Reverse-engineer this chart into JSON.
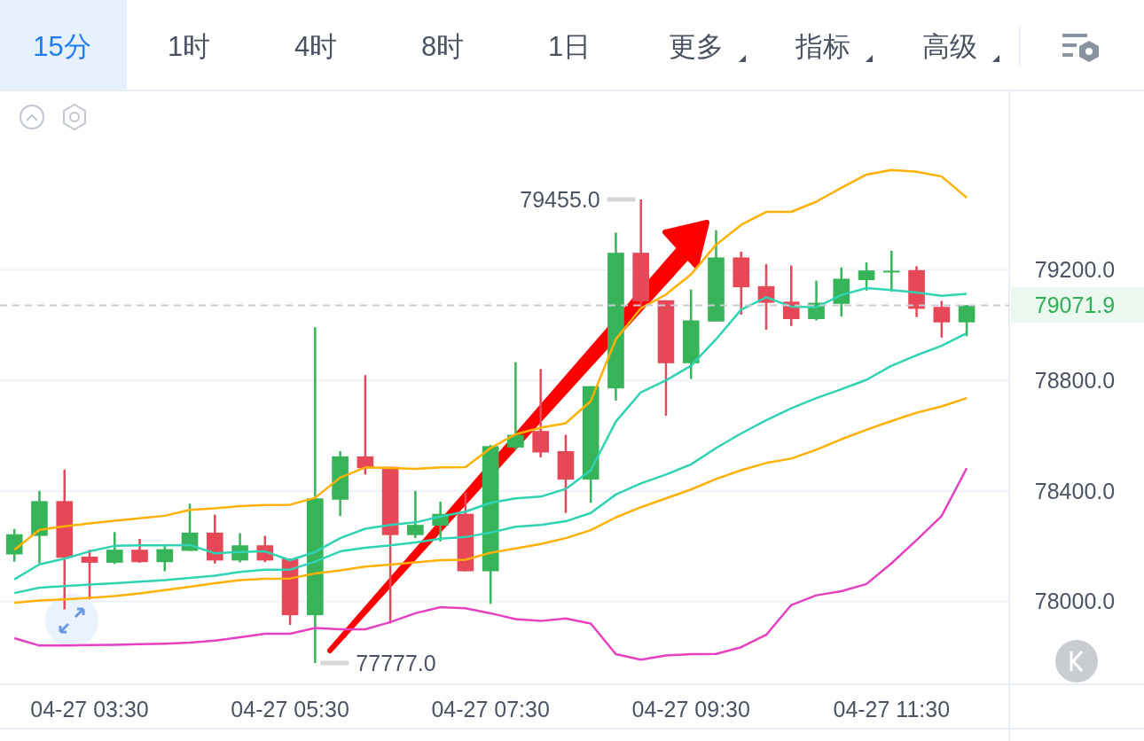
{
  "chart_data": {
    "type": "candlestick",
    "categories": [
      null,
      null,
      null,
      "04-27 03:30",
      null,
      null,
      null,
      null,
      null,
      null,
      null,
      "04-27 05:30",
      null,
      null,
      null,
      null,
      null,
      null,
      null,
      "04-27 07:30",
      null,
      null,
      null,
      null,
      null,
      null,
      null,
      "04-27 09:30",
      null,
      null,
      null,
      null,
      null,
      null,
      null,
      "04-27 11:30",
      null,
      null,
      null
    ],
    "ohlc": [
      [
        78170,
        78262,
        78144,
        78243
      ],
      [
        78237,
        78400,
        78138,
        78363
      ],
      [
        78363,
        78477,
        77971,
        78158
      ],
      [
        78162,
        78187,
        78007,
        78140
      ],
      [
        78140,
        78251,
        78135,
        78187
      ],
      [
        78187,
        78226,
        78140,
        78142
      ],
      [
        78142,
        78200,
        78109,
        78189
      ],
      [
        78183,
        78354,
        78183,
        78249
      ],
      [
        78249,
        78314,
        78137,
        78148
      ],
      [
        78148,
        78247,
        78141,
        78203
      ],
      [
        78203,
        78237,
        78142,
        78148
      ],
      [
        78155,
        78155,
        77915,
        77950
      ],
      [
        77950,
        78992,
        77777,
        78373
      ],
      [
        78368,
        78544,
        78309,
        78525
      ],
      [
        78525,
        78819,
        78459,
        78482
      ],
      [
        78487,
        78487,
        77920,
        78240
      ],
      [
        78240,
        78400,
        78229,
        78277
      ],
      [
        78274,
        78361,
        78217,
        78317
      ],
      [
        78317,
        78395,
        78109,
        78109
      ],
      [
        78109,
        78566,
        77991,
        78562
      ],
      [
        78557,
        78866,
        78549,
        78603
      ],
      [
        78617,
        78841,
        78521,
        78539
      ],
      [
        78544,
        78603,
        78320,
        78441
      ],
      [
        78441,
        78779,
        78357,
        78779
      ],
      [
        78771,
        79335,
        78727,
        79262
      ],
      [
        79262,
        79455,
        79067,
        79086
      ],
      [
        79090,
        79090,
        78672,
        78862
      ],
      [
        78862,
        79129,
        78805,
        79017
      ],
      [
        79013,
        79344,
        79013,
        79245
      ],
      [
        79245,
        79266,
        79038,
        79137
      ],
      [
        79141,
        79221,
        78983,
        79081
      ],
      [
        79085,
        79216,
        78997,
        79022
      ],
      [
        79022,
        79161,
        79017,
        79081
      ],
      [
        79077,
        79209,
        79031,
        79168
      ],
      [
        79163,
        79227,
        79125,
        79198
      ],
      [
        79195,
        79269,
        79122,
        79197
      ],
      [
        79199,
        79213,
        79029,
        79059
      ],
      [
        79066,
        79088,
        78955,
        79010
      ],
      [
        79010,
        79072,
        78960,
        79071.9
      ]
    ],
    "colors": [
      "#37b45a",
      "#37b45a",
      "#e64857",
      "#e64857",
      "#37b45a",
      "#e64857",
      "#37b45a",
      "#37b45a",
      "#e64857",
      "#37b45a",
      "#e64857",
      "#e64857",
      "#37b45a",
      "#37b45a",
      "#e64857",
      "#e64857",
      "#37b45a",
      "#37b45a",
      "#e64857",
      "#37b45a",
      "#37b45a",
      "#e64857",
      "#e64857",
      "#37b45a",
      "#37b45a",
      "#e64857",
      "#e64857",
      "#37b45a",
      "#37b45a",
      "#e64857",
      "#e64857",
      "#e64857",
      "#37b45a",
      "#37b45a",
      "#37b45a",
      "#37b45a",
      "#e64857",
      "#e64857",
      "#37b45a"
    ],
    "series": [
      {
        "type": "line",
        "color": "#ffb000",
        "values": [
          78187,
          78259,
          78272,
          78282,
          78292,
          78301,
          78310,
          78331,
          78337,
          78345,
          78349,
          78350,
          78375,
          78448,
          78485,
          78483,
          78480,
          78485,
          78486,
          78555,
          78605,
          78629,
          78645,
          78725,
          78949,
          79061,
          79111,
          79184,
          79291,
          79363,
          79410,
          79410,
          79447,
          79497,
          79545,
          79562,
          79555,
          79538,
          79461
        ]
      },
      {
        "type": "line",
        "color": "#2fd3b3",
        "values": [
          78080,
          78134,
          78155,
          78181,
          78201,
          78203,
          78203,
          78204,
          78174,
          78179,
          78181,
          78149,
          78179,
          78229,
          78263,
          78277,
          78286,
          78307,
          78325,
          78357,
          78373,
          78379,
          78407,
          78475,
          78651,
          78757,
          78800,
          78853,
          78949,
          79056,
          79101,
          79067,
          79065,
          79109,
          79134,
          79127,
          79118,
          79106,
          79113
        ]
      },
      {
        "type": "line",
        "color": "#2fd3b3",
        "values": [
          78030,
          78050,
          78055,
          78061,
          78066,
          78071,
          78077,
          78085,
          78093,
          78107,
          78115,
          78115,
          78144,
          78181,
          78194,
          78203,
          78213,
          78227,
          78233,
          78249,
          78270,
          78277,
          78290,
          78320,
          78387,
          78427,
          78459,
          78496,
          78555,
          78608,
          78656,
          78699,
          78736,
          78768,
          78802,
          78853,
          78891,
          78925,
          78971
        ]
      },
      {
        "type": "line",
        "color": "#ffb000",
        "values": [
          77995,
          78003,
          78007,
          78013,
          78019,
          78029,
          78041,
          78053,
          78066,
          78077,
          78082,
          78083,
          78101,
          78112,
          78126,
          78133,
          78141,
          78149,
          78151,
          78176,
          78192,
          78208,
          78229,
          78258,
          78304,
          78341,
          78373,
          78405,
          78443,
          78475,
          78501,
          78517,
          78549,
          78587,
          78621,
          78653,
          78683,
          78706,
          78736
        ]
      },
      {
        "type": "line",
        "color": "#e640c0",
        "values": [
          77867,
          77840,
          77840,
          77842,
          77843,
          77845,
          77847,
          77851,
          77858,
          77870,
          77883,
          77883,
          77904,
          77899,
          77899,
          77925,
          77957,
          77979,
          77975,
          77957,
          77936,
          77929,
          77938,
          77920,
          77809,
          77789,
          77804,
          77809,
          77810,
          77834,
          77879,
          77987,
          78022,
          78037,
          78063,
          78138,
          78222,
          78309,
          78482
        ]
      }
    ],
    "ylim": [
      77700,
      79840
    ],
    "yticks": [
      {
        "value": 78000,
        "label": "78000.0"
      },
      {
        "value": 78400,
        "label": "78400.0"
      },
      {
        "value": 78800,
        "label": "78800.0"
      },
      {
        "value": 79200,
        "label": "79200.0"
      }
    ],
    "grid": "y",
    "ref_lines": [
      {
        "axis": "y",
        "value": 79071.9,
        "label": "79071.9",
        "color": "#c8ccd4",
        "line_style": "dashed"
      }
    ],
    "annotations": [
      "15分",
      "1时",
      "4时",
      "8时",
      "1日",
      "更多",
      "指标",
      "高级",
      "79455.0",
      "77777.0"
    ]
  }
}
